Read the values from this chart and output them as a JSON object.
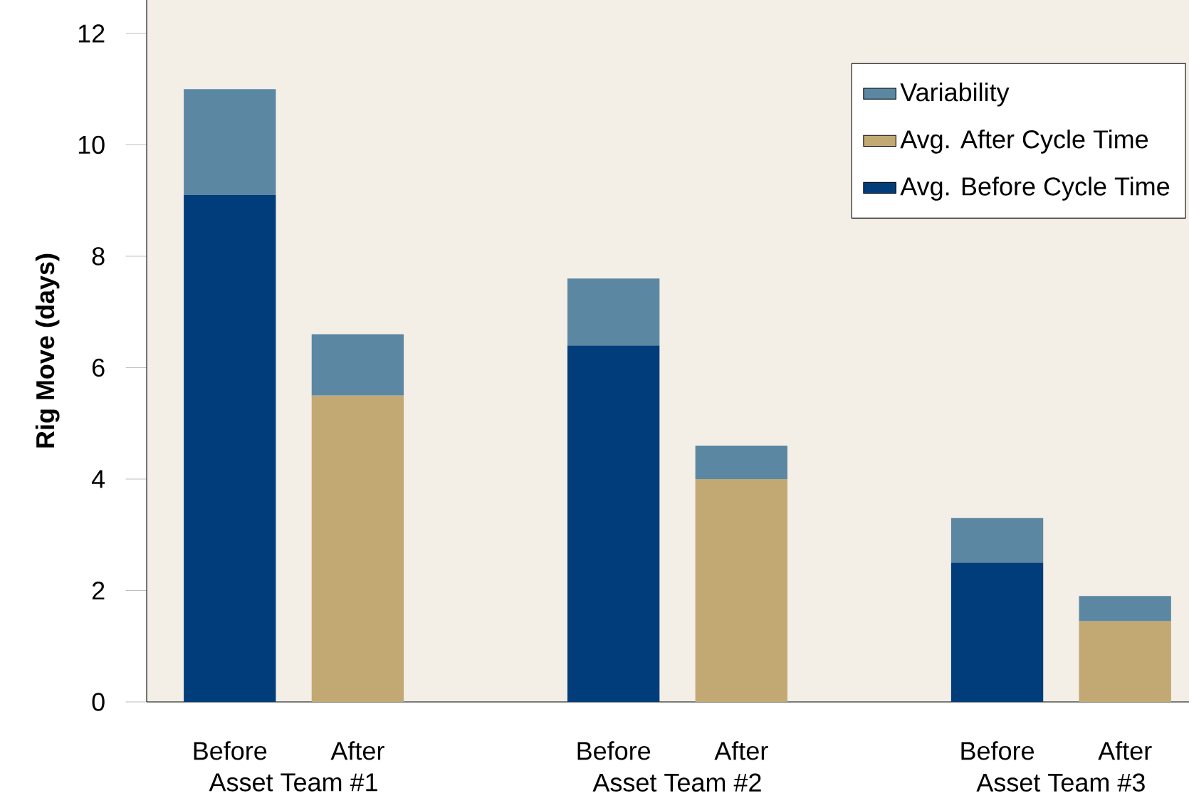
{
  "chart_data": {
    "type": "bar",
    "stacked": true,
    "ylabel": "Rig Move (days)",
    "categories": [
      "Before",
      "After",
      null,
      "Before",
      "After",
      null,
      "Before",
      "After"
    ],
    "series": [
      {
        "name": "Avg. Before Cycle Time",
        "color": "#003d7a",
        "values": [
          9.1,
          null,
          null,
          6.4,
          null,
          null,
          2.5,
          null
        ]
      },
      {
        "name": "Avg. After Cycle Time",
        "color": "#c2a873",
        "values": [
          null,
          5.5,
          null,
          null,
          4.0,
          null,
          null,
          1.45
        ]
      },
      {
        "name": "Variability",
        "color": "#5b87a3",
        "values": [
          1.9,
          1.1,
          null,
          1.2,
          0.6,
          null,
          0.8,
          0.45
        ]
      }
    ],
    "ylim": [
      0,
      12.6
    ],
    "yticks": [
      0,
      2,
      4,
      6,
      8,
      10,
      12
    ],
    "legend": "top right",
    "annotations": [
      "Asset Team #1",
      "Asset Team #2",
      "Asset Team #3"
    ]
  }
}
